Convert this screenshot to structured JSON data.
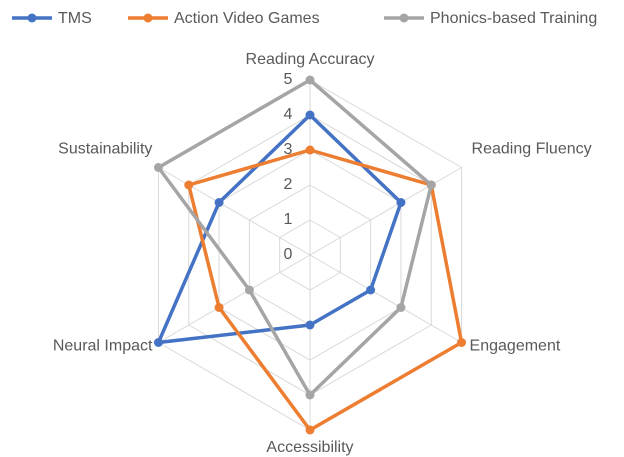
{
  "chart_data": {
    "type": "radar",
    "categories": [
      "Reading Accuracy",
      "Reading Fluency",
      "Engagement",
      "Accessibility",
      "Neural Impact",
      "Sustainability"
    ],
    "series": [
      {
        "name": "TMS",
        "color": "#4472c4",
        "values": [
          4,
          3,
          2,
          2,
          5,
          3
        ]
      },
      {
        "name": "Action Video Games",
        "color": "#ed7d31",
        "values": [
          3,
          4,
          5,
          5,
          3,
          4
        ]
      },
      {
        "name": "Phonics-based Training",
        "color": "#a5a5a5",
        "values": [
          5,
          4,
          3,
          4,
          2,
          5
        ]
      }
    ],
    "rlim": [
      0,
      5
    ],
    "rticks": [
      0,
      1,
      2,
      3,
      4,
      5
    ],
    "grid": true,
    "legend": "top"
  }
}
